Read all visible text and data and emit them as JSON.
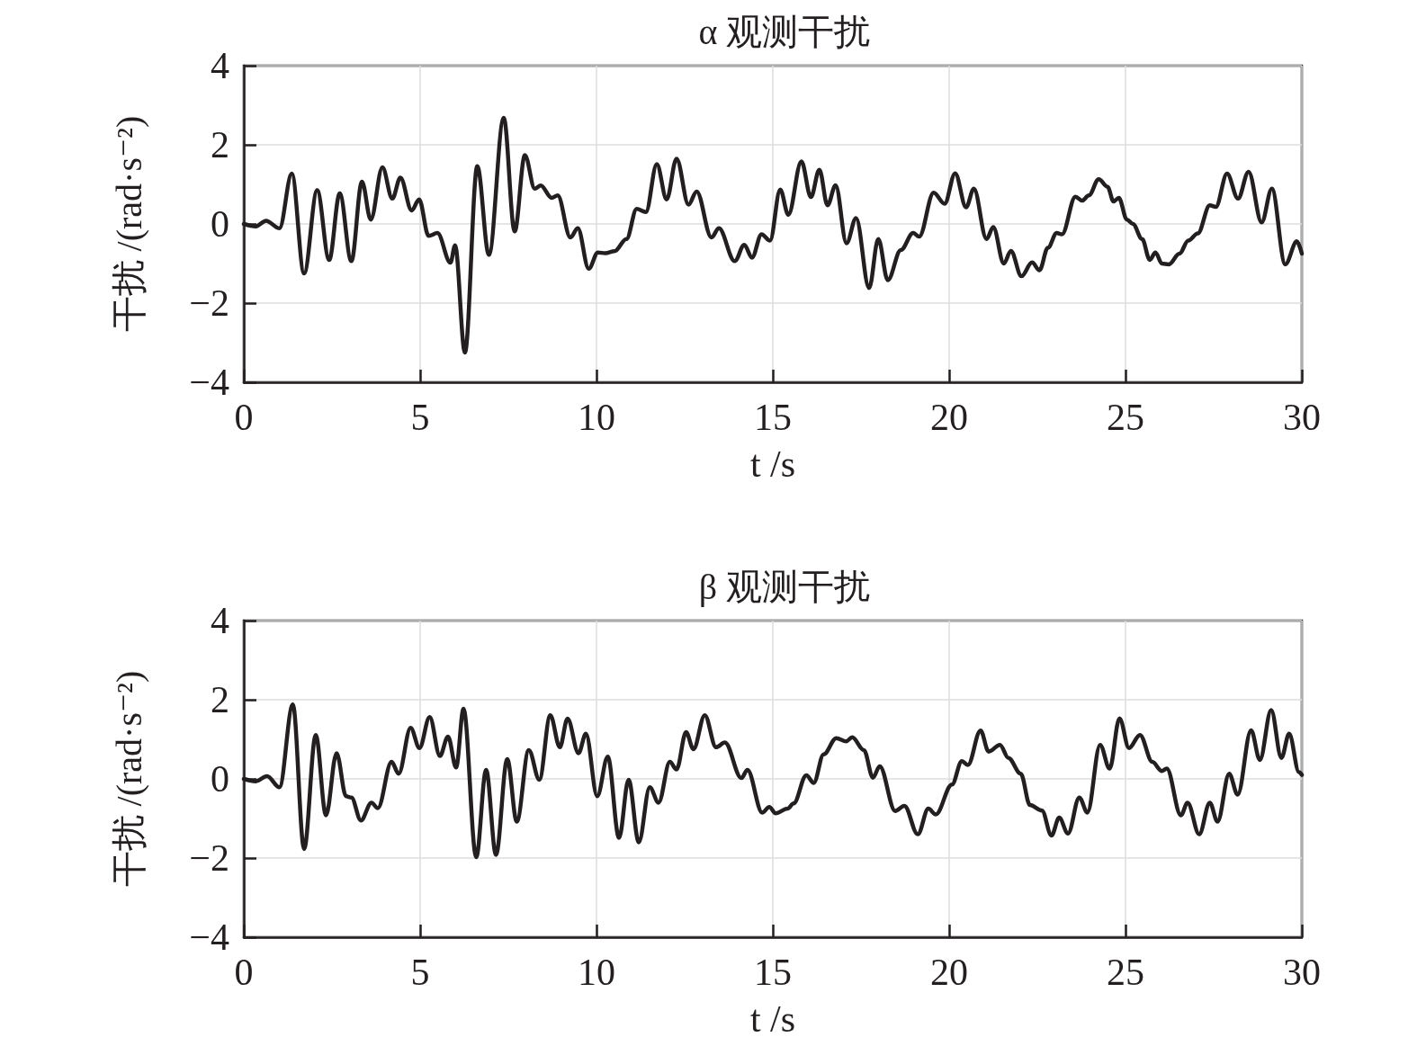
{
  "chart_data": [
    {
      "type": "line",
      "title": "α 观测干扰",
      "xlabel": "t /s",
      "ylabel": "干扰 /(rad·s⁻²)",
      "xlim": [
        0,
        30
      ],
      "xticks": [
        0,
        5,
        10,
        15,
        20,
        25,
        30
      ],
      "ylim": [
        -4,
        4
      ],
      "yticks": [
        -4,
        -2,
        0,
        2,
        4
      ],
      "grid": true,
      "marker": "none",
      "line_style": "solid",
      "series": [
        {
          "color": "#231f20",
          "x": [
            0,
            0.34,
            0.63,
            1.01,
            1.36,
            1.71,
            2.08,
            2.42,
            2.72,
            3.05,
            3.35,
            3.6,
            3.93,
            4.21,
            4.44,
            4.76,
            4.97,
            5.24,
            5.49,
            5.86,
            5.99,
            6.27,
            6.62,
            6.95,
            7.37,
            7.68,
            7.97,
            8.25,
            8.42,
            8.73,
            8.9,
            9.26,
            9.47,
            9.78,
            10.04,
            10.25,
            10.51,
            10.85,
            11.14,
            11.4,
            11.71,
            11.99,
            12.27,
            12.61,
            12.84,
            13.26,
            13.47,
            13.92,
            14.19,
            14.41,
            14.68,
            14.92,
            15.21,
            15.44,
            15.81,
            16.08,
            16.32,
            16.55,
            16.78,
            17.09,
            17.36,
            17.73,
            17.99,
            18.26,
            18.63,
            18.98,
            19.15,
            19.56,
            19.87,
            20.17,
            20.48,
            20.7,
            21.06,
            21.25,
            21.55,
            21.75,
            22.05,
            22.35,
            22.56,
            22.8,
            23.05,
            23.2,
            23.58,
            23.77,
            23.96,
            24.24,
            24.49,
            24.66,
            24.81,
            25.04,
            25.21,
            25.47,
            25.69,
            25.85,
            26.03,
            26.23,
            26.53,
            26.78,
            27.05,
            27.39,
            27.56,
            27.88,
            28.19,
            28.49,
            28.86,
            29.15,
            29.53,
            29.86,
            30
          ],
          "values": [
            0,
            -0.06,
            0.08,
            -0.11,
            1.27,
            -1.25,
            0.85,
            -0.91,
            0.77,
            -0.94,
            1.07,
            0.11,
            1.43,
            0.64,
            1.17,
            0.34,
            0.62,
            -0.3,
            -0.23,
            -0.98,
            -0.54,
            -3.25,
            1.46,
            -0.78,
            2.68,
            -0.19,
            1.74,
            0.89,
            0.97,
            0.66,
            0.72,
            -0.34,
            -0.11,
            -1.13,
            -0.72,
            -0.74,
            -0.69,
            -0.38,
            0.38,
            0.3,
            1.51,
            0.62,
            1.65,
            0.49,
            0.82,
            -0.34,
            -0.11,
            -0.94,
            -0.53,
            -0.85,
            -0.26,
            -0.42,
            0.87,
            0.23,
            1.58,
            0.68,
            1.37,
            0.47,
            0.98,
            -0.49,
            0.15,
            -1.62,
            -0.38,
            -1.42,
            -0.66,
            -0.23,
            -0.32,
            0.79,
            0.51,
            1.28,
            0.42,
            0.89,
            -0.38,
            -0.08,
            -1.0,
            -0.68,
            -1.32,
            -0.97,
            -1.17,
            -0.6,
            -0.23,
            -0.26,
            0.69,
            0.59,
            0.72,
            1.13,
            0.94,
            0.57,
            0.66,
            0.11,
            0,
            -0.38,
            -0.91,
            -0.72,
            -1.0,
            -1.02,
            -0.75,
            -0.42,
            -0.24,
            0.47,
            0.43,
            1.27,
            0.64,
            1.32,
            0.04,
            0.89,
            -1.02,
            -0.44,
            -0.75
          ]
        }
      ]
    },
    {
      "type": "line",
      "title": "β 观测干扰",
      "xlabel": "t /s",
      "ylabel": "干扰 /(rad·s⁻²)",
      "xlim": [
        0,
        30
      ],
      "xticks": [
        0,
        5,
        10,
        15,
        20,
        25,
        30
      ],
      "ylim": [
        -4,
        4
      ],
      "yticks": [
        -4,
        -2,
        0,
        2,
        4
      ],
      "grid": true,
      "marker": "none",
      "line_style": "solid",
      "series": [
        {
          "color": "#231f20",
          "x": [
            0,
            0.34,
            0.66,
            1.01,
            1.39,
            1.71,
            2.04,
            2.33,
            2.63,
            2.9,
            3.05,
            3.32,
            3.62,
            3.8,
            4.19,
            4.39,
            4.73,
            4.98,
            5.27,
            5.56,
            5.79,
            6.02,
            6.23,
            6.59,
            6.87,
            7.15,
            7.47,
            7.74,
            8.08,
            8.38,
            8.69,
            8.96,
            9.18,
            9.49,
            9.7,
            10.02,
            10.32,
            10.64,
            10.91,
            11.2,
            11.51,
            11.76,
            12.08,
            12.27,
            12.54,
            12.75,
            13.07,
            13.39,
            13.64,
            14.11,
            14.28,
            14.7,
            14.9,
            15.08,
            15.42,
            15.59,
            15.95,
            16.16,
            16.44,
            16.8,
            17.08,
            17.25,
            17.58,
            17.84,
            18.03,
            18.47,
            18.73,
            19.11,
            19.41,
            19.62,
            20.08,
            20.36,
            20.53,
            20.89,
            21.12,
            21.44,
            21.68,
            22.03,
            22.29,
            22.63,
            22.9,
            23.12,
            23.37,
            23.69,
            23.92,
            24.28,
            24.55,
            24.83,
            25.1,
            25.41,
            25.76,
            26.03,
            26.17,
            26.57,
            26.76,
            27.09,
            27.39,
            27.61,
            27.94,
            28.18,
            28.56,
            28.81,
            29.13,
            29.42,
            29.64,
            29.92,
            30
          ],
          "values": [
            0,
            -0.06,
            0.07,
            -0.21,
            1.88,
            -1.77,
            1.11,
            -0.92,
            0.65,
            -0.44,
            -0.47,
            -1.05,
            -0.6,
            -0.74,
            0.43,
            0.13,
            1.29,
            0.78,
            1.56,
            0.58,
            1.07,
            0.29,
            1.77,
            -1.98,
            0.23,
            -1.92,
            0.5,
            -1.08,
            0.73,
            -0.02,
            1.61,
            0.8,
            1.52,
            0.65,
            1.14,
            -0.44,
            0.56,
            -1.49,
            -0.02,
            -1.6,
            -0.21,
            -0.6,
            0.43,
            0.24,
            1.18,
            0.75,
            1.61,
            0.8,
            0.92,
            0.02,
            0.23,
            -0.85,
            -0.71,
            -0.87,
            -0.75,
            -0.62,
            0.09,
            -0.1,
            0.62,
            1.03,
            0.95,
            1.05,
            0.73,
            0.03,
            0.32,
            -0.81,
            -0.68,
            -1.4,
            -0.75,
            -0.9,
            -0.14,
            0.45,
            0.35,
            1.22,
            0.69,
            0.86,
            0.53,
            0.13,
            -0.66,
            -0.8,
            -1.43,
            -0.98,
            -1.38,
            -0.47,
            -0.85,
            0.86,
            0.26,
            1.53,
            0.78,
            1.11,
            0.43,
            0.2,
            0.26,
            -0.92,
            -0.6,
            -1.4,
            -0.6,
            -1.08,
            0.13,
            -0.4,
            1.23,
            0.48,
            1.74,
            0.53,
            1.14,
            0.17,
            0.1
          ]
        }
      ]
    }
  ]
}
